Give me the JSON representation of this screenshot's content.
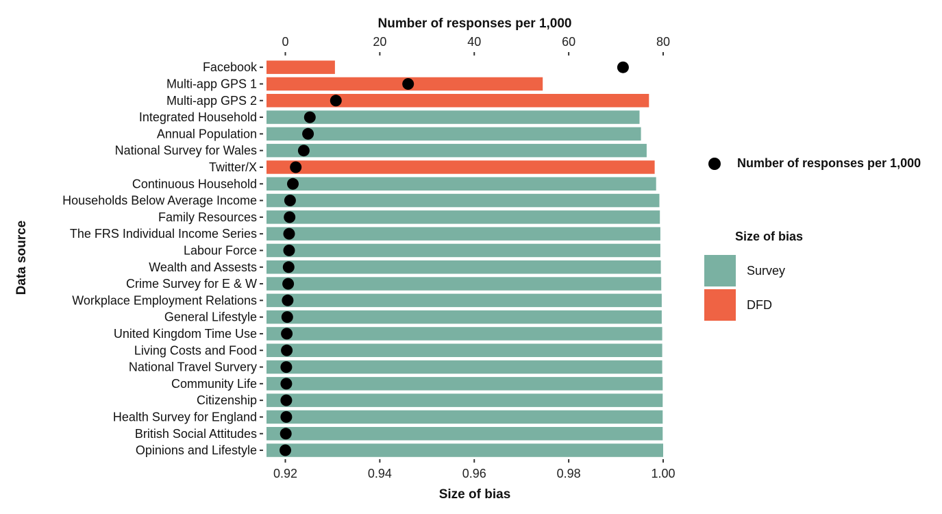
{
  "chart_data": {
    "type": "bar",
    "orientation": "horizontal",
    "xlabel": "Size of bias",
    "x2label": "Number of responses per 1,000",
    "ylabel": "Data source",
    "xlim": [
      0.92,
      1.0
    ],
    "x_ticks": [
      "0.92",
      "0.94",
      "0.96",
      "0.98",
      "1.00"
    ],
    "x2lim": [
      0,
      80
    ],
    "x2_ticks": [
      "0",
      "20",
      "40",
      "60",
      "80"
    ],
    "grid": false,
    "legend_position": "right",
    "legend": {
      "point_label": "Number of responses per 1,000",
      "fill_title": "Size of bias",
      "fill_items": [
        {
          "label": "Survey",
          "color": "#7ab1a2"
        },
        {
          "label": "DFD",
          "color": "#ef6344"
        }
      ]
    },
    "categories": [
      "Facebook",
      "Multi-app GPS 1",
      "Multi-app GPS 2",
      "Integrated Household",
      "Annual Population",
      "National Survey for Wales",
      "Twitter/X",
      "Continuous Household",
      "Households Below Average Income",
      "Family Resources",
      "The FRS Individual Income Series",
      "Labour Force",
      "Wealth and Assests",
      "Crime Survey for E & W",
      "Workplace Employment Relations",
      "General Lifestyle",
      "United Kingdom Time Use",
      "Living Costs and Food",
      "National Travel Survery",
      "Community Life",
      "Citizenship",
      "Health Survey for England",
      "British Social Attitudes",
      "Opinions and Lifestyle"
    ],
    "bar_type": [
      "DFD",
      "DFD",
      "DFD",
      "Survey",
      "Survey",
      "Survey",
      "DFD",
      "Survey",
      "Survey",
      "Survey",
      "Survey",
      "Survey",
      "Survey",
      "Survey",
      "Survey",
      "Survey",
      "Survey",
      "Survey",
      "Survey",
      "Survey",
      "Survey",
      "Survey",
      "Survey",
      "Survey"
    ],
    "bias_values": [
      0.9305,
      0.9745,
      0.997,
      0.995,
      0.9953,
      0.9965,
      0.9982,
      0.9985,
      0.9992,
      0.9993,
      0.9994,
      0.9994,
      0.9995,
      0.9996,
      0.9997,
      0.9997,
      0.9998,
      0.9998,
      0.9998,
      0.9999,
      0.9999,
      0.9999,
      0.9999,
      1.0
    ],
    "responses_per_1000": [
      71.5,
      26.0,
      10.7,
      5.2,
      4.8,
      3.9,
      2.2,
      1.6,
      1.0,
      0.9,
      0.8,
      0.8,
      0.7,
      0.6,
      0.5,
      0.4,
      0.3,
      0.3,
      0.2,
      0.2,
      0.2,
      0.2,
      0.1,
      0.0
    ]
  }
}
